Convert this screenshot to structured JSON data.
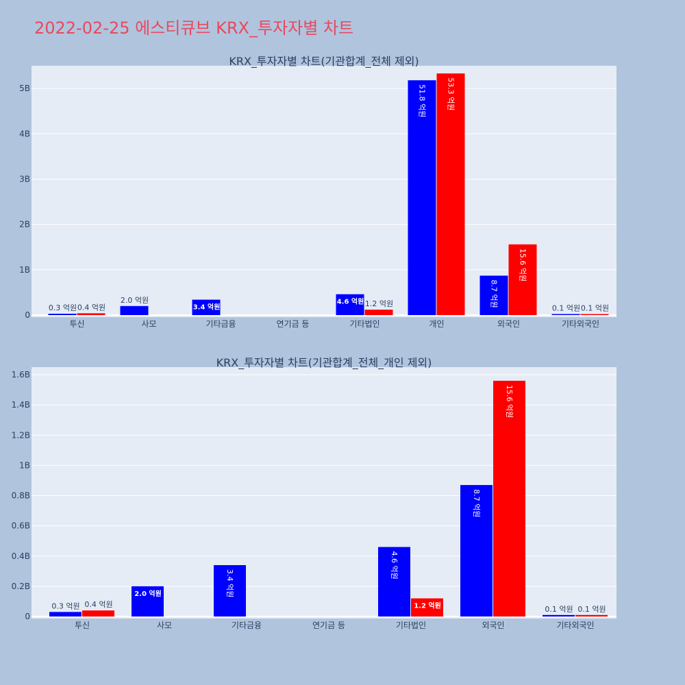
{
  "page": {
    "title": "2022-02-25 에스티큐브 KRX_투자자별 차트",
    "title_color": "#e8495d",
    "background": "#b0c4de",
    "plot_background": "#e5ecf6",
    "grid_color": "#ffffff",
    "text_color": "#2a3f5f"
  },
  "chart_data": [
    {
      "type": "bar",
      "title": "KRX_투자자별 차트(기관합계_전체 제외)",
      "xlabel": "",
      "ylabel": "",
      "categories": [
        "투신",
        "사모",
        "기타금융",
        "연기금 등",
        "기타법인",
        "개인",
        "외국인",
        "기타외국인"
      ],
      "ylim": [
        0,
        5.5
      ],
      "y_unit": "B",
      "yticks": [
        0,
        1,
        2,
        3,
        4,
        5
      ],
      "ytick_labels": [
        "0",
        "1B",
        "2B",
        "3B",
        "4B",
        "5B"
      ],
      "grid": true,
      "legend": "none",
      "series": [
        {
          "color": "#0000ff",
          "values": [
            0.03,
            0.2,
            0.34,
            null,
            0.46,
            5.18,
            0.87,
            0.01
          ],
          "labels": [
            "0.3 억원",
            "2.0 억원",
            "3.4 억원",
            null,
            "4.6 억원",
            "51.8 억원",
            "8.7 억원",
            "0.1 억원"
          ]
        },
        {
          "color": "#ff0000",
          "values": [
            0.04,
            null,
            null,
            null,
            0.12,
            5.33,
            1.56,
            0.01
          ],
          "labels": [
            "0.4 억원",
            null,
            null,
            null,
            "1.2 억원",
            "53.3 억원",
            "15.6 억원",
            "0.1 억원"
          ]
        }
      ]
    },
    {
      "type": "bar",
      "title": "KRX_투자자별 차트(기관합계_전체_개인 제외)",
      "xlabel": "",
      "ylabel": "",
      "categories": [
        "투신",
        "사모",
        "기타금융",
        "연기금 등",
        "기타법인",
        "외국인",
        "기타외국인"
      ],
      "ylim": [
        0,
        1.65
      ],
      "y_unit": "B",
      "yticks": [
        0,
        0.2,
        0.4,
        0.6,
        0.8,
        1.0,
        1.2,
        1.4,
        1.6
      ],
      "ytick_labels": [
        "0",
        "0.2B",
        "0.4B",
        "0.6B",
        "0.8B",
        "1B",
        "1.2B",
        "1.4B",
        "1.6B"
      ],
      "grid": true,
      "legend": "none",
      "series": [
        {
          "color": "#0000ff",
          "values": [
            0.03,
            0.2,
            0.34,
            null,
            0.46,
            0.87,
            0.01
          ],
          "labels": [
            "0.3 억원",
            "2.0 억원",
            "3.4 억원",
            null,
            "4.6 억원",
            "8.7 억원",
            "0.1 억원"
          ]
        },
        {
          "color": "#ff0000",
          "values": [
            0.04,
            null,
            null,
            null,
            0.12,
            1.56,
            0.01
          ],
          "labels": [
            "0.4 억원",
            null,
            null,
            null,
            "1.2 억원",
            "15.6 억원",
            "0.1 억원"
          ]
        }
      ]
    }
  ]
}
